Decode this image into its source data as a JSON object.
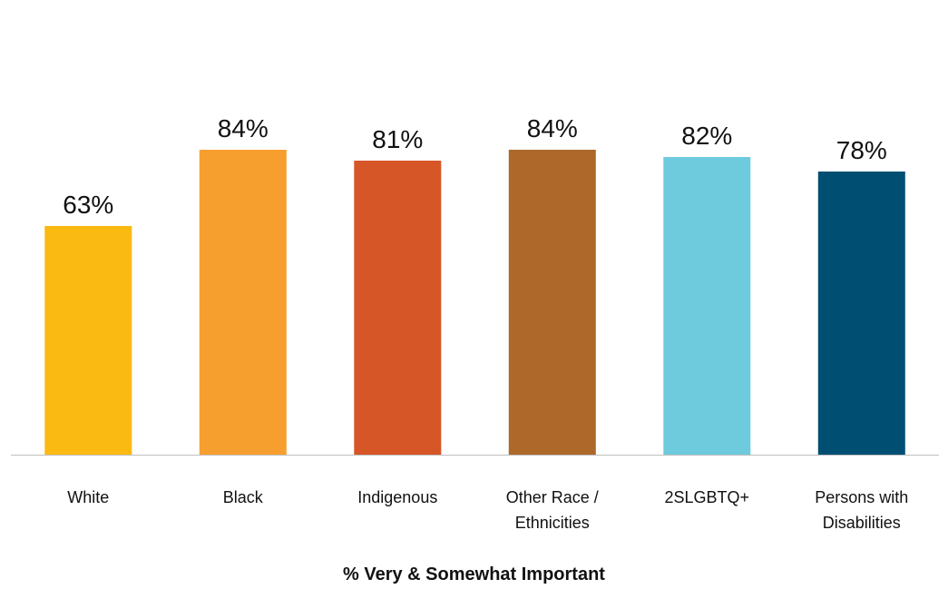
{
  "chart_data": {
    "type": "bar",
    "categories": [
      "White",
      "Black",
      "Indigenous",
      "Other Race / Ethnicities",
      "2SLGBTQ+",
      "Persons with Disabilities"
    ],
    "category_lines": [
      [
        "White"
      ],
      [
        "Black"
      ],
      [
        "Indigenous"
      ],
      [
        "Other Race /",
        "Ethnicities"
      ],
      [
        "2SLGBTQ+"
      ],
      [
        "Persons with",
        "Disabilities"
      ]
    ],
    "values": [
      63,
      84,
      81,
      84,
      82,
      78
    ],
    "data_labels": [
      "63%",
      "84%",
      "81%",
      "84%",
      "82%",
      "78%"
    ],
    "colors": [
      "#FBBA12",
      "#F79F2E",
      "#D65627",
      "#AD682A",
      "#6ECADD",
      "#004F72"
    ],
    "title": "",
    "xlabel": "% Very & Somewhat Important",
    "ylabel": "",
    "ylim": [
      0,
      100
    ],
    "grid": false,
    "legend": "none"
  }
}
